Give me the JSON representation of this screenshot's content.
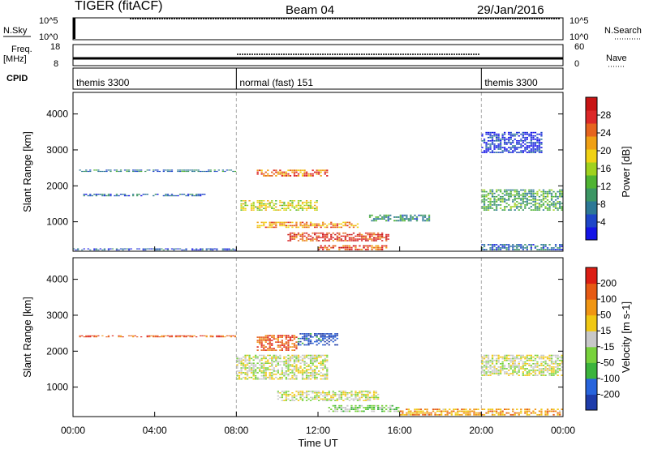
{
  "header": {
    "title": "TIGER (fitACF)",
    "beam": "Beam 04",
    "date": "29/Jan/2016"
  },
  "top_panels": {
    "nsky_label": "N.Sky",
    "nsky_ticks": [
      "10^5",
      "10^0"
    ],
    "nsearch_label": "N.Search",
    "nsearch_ticks": [
      "10^5",
      "10^0"
    ],
    "freq_label": "Freq.",
    "freq_unit": "[MHz]",
    "freq_ticks": [
      "18",
      "8"
    ],
    "nave_label": "Nave",
    "nave_ticks": [
      "60",
      "0"
    ],
    "cpid_label": "CPID",
    "cpid_segments": [
      {
        "name": "themis 3300",
        "start_h": 0,
        "end_h": 8
      },
      {
        "name": "normal (fast) 151",
        "start_h": 8,
        "end_h": 20
      },
      {
        "name": "themis 3300",
        "start_h": 20,
        "end_h": 24
      }
    ]
  },
  "x_axis": {
    "label": "Time UT",
    "ticks": [
      "00:00",
      "04:00",
      "08:00",
      "12:00",
      "16:00",
      "20:00",
      "00:00"
    ]
  },
  "chart_data": [
    {
      "type": "heatmap",
      "quantity": "Power",
      "ylabel": "Slant Range [km]",
      "yticks": [
        1000,
        2000,
        3000,
        4000
      ],
      "ylim": [
        180,
        4600
      ],
      "xlim_hours": [
        0,
        24
      ],
      "colorbar": {
        "label": "Power [dB]",
        "ticks": [
          4,
          8,
          12,
          16,
          20,
          24,
          28
        ],
        "colors": [
          "#1414e6",
          "#1e46c8",
          "#2d7896",
          "#3c9664",
          "#50b432",
          "#a0d21e",
          "#f0d214",
          "#f0a014",
          "#e6641e",
          "#dc2828",
          "#c81414"
        ]
      },
      "regions": [
        {
          "t0": 0.3,
          "t1": 8.0,
          "r0": 2380,
          "r1": 2450,
          "level": 0.25
        },
        {
          "t0": 0.5,
          "t1": 6.5,
          "r0": 1700,
          "r1": 1780,
          "level": 0.2
        },
        {
          "t0": 0.0,
          "t1": 8.0,
          "r0": 200,
          "r1": 260,
          "level": 0.15
        },
        {
          "t0": 9.0,
          "t1": 12.5,
          "r0": 2250,
          "r1": 2450,
          "level": 0.75
        },
        {
          "t0": 8.2,
          "t1": 12.0,
          "r0": 1300,
          "r1": 1600,
          "level": 0.55
        },
        {
          "t0": 9.0,
          "t1": 14.0,
          "r0": 820,
          "r1": 1000,
          "level": 0.7
        },
        {
          "t0": 10.5,
          "t1": 15.5,
          "r0": 450,
          "r1": 700,
          "level": 0.85
        },
        {
          "t0": 12.0,
          "t1": 15.5,
          "r0": 200,
          "r1": 350,
          "level": 0.8
        },
        {
          "t0": 14.5,
          "t1": 17.5,
          "r0": 1000,
          "r1": 1200,
          "level": 0.3
        },
        {
          "t0": 20.0,
          "t1": 24.0,
          "r0": 1300,
          "r1": 1900,
          "level": 0.35
        },
        {
          "t0": 20.0,
          "t1": 24.0,
          "r0": 200,
          "r1": 380,
          "level": 0.2
        },
        {
          "t0": 20.0,
          "t1": 23.0,
          "r0": 2900,
          "r1": 3500,
          "level": 0.1
        }
      ]
    },
    {
      "type": "heatmap",
      "quantity": "Velocity",
      "ylabel": "Slant Range [km]",
      "yticks": [
        1000,
        2000,
        3000,
        4000
      ],
      "ylim": [
        180,
        4600
      ],
      "xlim_hours": [
        0,
        24
      ],
      "colorbar": {
        "label": "Velocity [m s-1]",
        "ticks": [
          200,
          100,
          50,
          15,
          -15,
          -50,
          -100,
          -200
        ],
        "colors": [
          "#1e3caa",
          "#2864dc",
          "#3cb43c",
          "#78d23c",
          "#c8c8c8",
          "#f0c814",
          "#f09614",
          "#e65a14",
          "#dc1e14"
        ]
      },
      "regions": [
        {
          "t0": 9.0,
          "t1": 11.0,
          "r0": 2000,
          "r1": 2450,
          "level": 0.85
        },
        {
          "t0": 11.0,
          "t1": 13.0,
          "r0": 2150,
          "r1": 2500,
          "level": 0.1
        },
        {
          "t0": 8.0,
          "t1": 12.5,
          "r0": 1200,
          "r1": 1900,
          "level": 0.5
        },
        {
          "t0": 10.0,
          "t1": 15.0,
          "r0": 600,
          "r1": 900,
          "level": 0.5
        },
        {
          "t0": 12.5,
          "t1": 16.0,
          "r0": 300,
          "r1": 500,
          "level": 0.4
        },
        {
          "t0": 20.0,
          "t1": 24.0,
          "r0": 1300,
          "r1": 1900,
          "level": 0.5
        },
        {
          "t0": 16.0,
          "t1": 24.0,
          "r0": 200,
          "r1": 400,
          "level": 0.7
        },
        {
          "t0": 0.3,
          "t1": 8.0,
          "r0": 2380,
          "r1": 2440,
          "level": 0.85
        }
      ]
    }
  ]
}
